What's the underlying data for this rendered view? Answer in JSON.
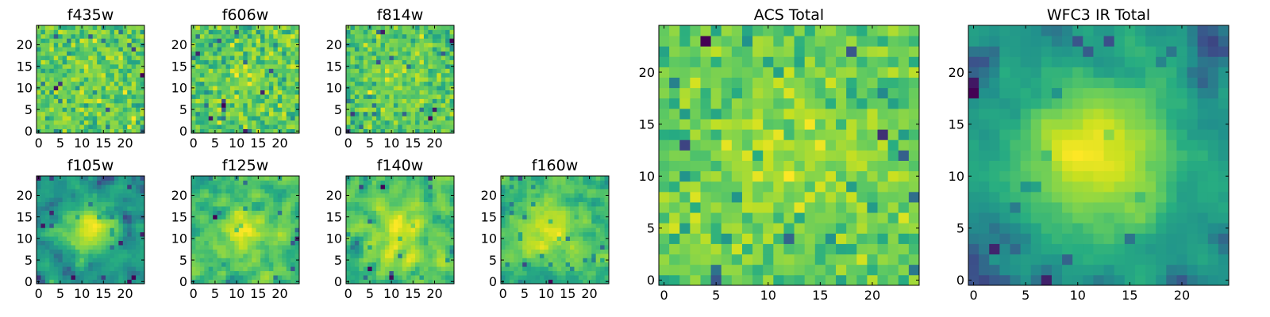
{
  "figure": {
    "background": "#ffffff"
  },
  "chart_data": [
    {
      "id": "f435w",
      "type": "heatmap",
      "title": "f435w",
      "size": 25,
      "seed": 11,
      "blob": {
        "cx": 13,
        "cy": 12,
        "r": 5,
        "amp": 0.05
      },
      "noise": 0.85,
      "smooth": false,
      "xticks": [
        0,
        5,
        10,
        15,
        20
      ],
      "yticks": [
        0,
        5,
        10,
        15,
        20
      ],
      "xlim": [
        -0.5,
        24.5
      ],
      "ylim": [
        -0.5,
        24.5
      ],
      "colormap": "viridis-like"
    },
    {
      "id": "f606w",
      "type": "heatmap",
      "title": "f606w",
      "size": 25,
      "seed": 23,
      "blob": {
        "cx": 13,
        "cy": 12,
        "r": 5,
        "amp": 0.08
      },
      "noise": 0.85,
      "smooth": false,
      "xticks": [
        0,
        5,
        10,
        15,
        20
      ],
      "yticks": [
        0,
        5,
        10,
        15,
        20
      ],
      "xlim": [
        -0.5,
        24.5
      ],
      "ylim": [
        -0.5,
        24.5
      ],
      "colormap": "viridis-like"
    },
    {
      "id": "f814w",
      "type": "heatmap",
      "title": "f814w",
      "size": 25,
      "seed": 37,
      "blob": {
        "cx": 12,
        "cy": 12,
        "r": 5,
        "amp": 0.15
      },
      "noise": 0.8,
      "smooth": false,
      "xticks": [
        0,
        5,
        10,
        15,
        20
      ],
      "yticks": [
        0,
        5,
        10,
        15,
        20
      ],
      "xlim": [
        -0.5,
        24.5
      ],
      "ylim": [
        -0.5,
        24.5
      ],
      "colormap": "viridis-like"
    },
    {
      "id": "f105w",
      "type": "heatmap",
      "title": "f105w",
      "size": 25,
      "seed": 41,
      "blob": {
        "cx": 12,
        "cy": 12,
        "r": 4,
        "amp": 0.4
      },
      "noise": 0.6,
      "smooth": true,
      "xticks": [
        0,
        5,
        10,
        15,
        20
      ],
      "yticks": [
        0,
        5,
        10,
        15,
        20
      ],
      "xlim": [
        -0.5,
        24.5
      ],
      "ylim": [
        -0.5,
        24.5
      ],
      "colormap": "viridis-like"
    },
    {
      "id": "f125w",
      "type": "heatmap",
      "title": "f125w",
      "size": 25,
      "seed": 53,
      "blob": {
        "cx": 12,
        "cy": 11,
        "r": 4,
        "amp": 0.2
      },
      "noise": 0.7,
      "smooth": true,
      "xticks": [
        0,
        5,
        10,
        15,
        20
      ],
      "yticks": [
        0,
        5,
        10,
        15,
        20
      ],
      "xlim": [
        -0.5,
        24.5
      ],
      "ylim": [
        -0.5,
        24.5
      ],
      "colormap": "viridis-like"
    },
    {
      "id": "f140w",
      "type": "heatmap",
      "title": "f140w",
      "size": 25,
      "seed": 67,
      "blob": {
        "cx": 12,
        "cy": 11,
        "r": 5,
        "amp": 0.2
      },
      "noise": 0.7,
      "smooth": true,
      "xticks": [
        0,
        5,
        10,
        15,
        20
      ],
      "yticks": [
        0,
        5,
        10,
        15,
        20
      ],
      "xlim": [
        -0.5,
        24.5
      ],
      "ylim": [
        -0.5,
        24.5
      ],
      "colormap": "viridis-like"
    },
    {
      "id": "f160w",
      "type": "heatmap",
      "title": "f160w",
      "size": 25,
      "seed": 79,
      "blob": {
        "cx": 10,
        "cy": 12,
        "r": 5,
        "amp": 0.25
      },
      "noise": 0.7,
      "smooth": true,
      "xticks": [
        0,
        5,
        10,
        15,
        20
      ],
      "yticks": [
        0,
        5,
        10,
        15,
        20
      ],
      "xlim": [
        -0.5,
        24.5
      ],
      "ylim": [
        -0.5,
        24.5
      ],
      "colormap": "viridis-like"
    },
    {
      "id": "acs_total",
      "type": "heatmap",
      "title": "ACS Total",
      "size": 25,
      "seed": 97,
      "blob": {
        "cx": 12,
        "cy": 12,
        "r": 5,
        "amp": 0.15
      },
      "noise": 0.7,
      "smooth": false,
      "xticks": [
        0,
        5,
        10,
        15,
        20
      ],
      "yticks": [
        0,
        5,
        10,
        15,
        20
      ],
      "xlim": [
        -0.5,
        24.5
      ],
      "ylim": [
        -0.5,
        24.5
      ],
      "colormap": "viridis-like"
    },
    {
      "id": "wfc3_ir_total",
      "type": "heatmap",
      "title": "WFC3 IR Total",
      "size": 25,
      "seed": 113,
      "blob": {
        "cx": 12,
        "cy": 12,
        "r": 5,
        "amp": 0.45
      },
      "noise": 0.5,
      "smooth": true,
      "xticks": [
        0,
        5,
        10,
        15,
        20
      ],
      "yticks": [
        0,
        5,
        10,
        15,
        20
      ],
      "xlim": [
        -0.5,
        24.5
      ],
      "ylim": [
        -0.5,
        24.5
      ],
      "colormap": "viridis-like"
    }
  ],
  "colormap": [
    "#440154",
    "#3b528b",
    "#21918c",
    "#27ad81",
    "#5ec962",
    "#8fd744",
    "#c8e020",
    "#fde725"
  ]
}
